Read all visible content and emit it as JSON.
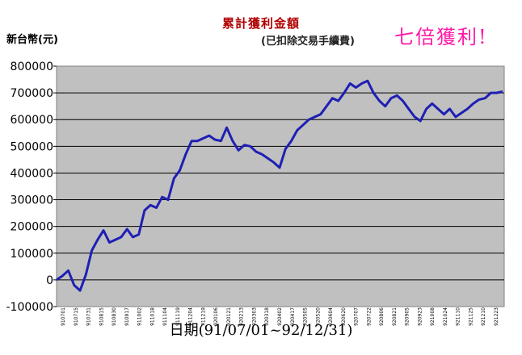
{
  "chart_data": {
    "type": "line",
    "title": "累計獲利金額",
    "subtitle": "(已扣除交易手續費)",
    "ylabel": "新台幣(元)",
    "xlabel": "日期(91/07/01~92/12/31)",
    "annotation": "七倍獲利!",
    "ylim": [
      -100000,
      800000
    ],
    "yticks": [
      -100000,
      0,
      100000,
      200000,
      300000,
      400000,
      500000,
      600000,
      700000,
      800000
    ],
    "ytick_labels": [
      "-100000",
      "0",
      "100000",
      "200000",
      "300000",
      "400000",
      "500000",
      "600000",
      "700000",
      "800000"
    ],
    "xtick_labels": [
      "910701",
      "910715",
      "910731",
      "910815",
      "910830",
      "910917",
      "911002",
      "911018",
      "911104",
      "911119",
      "911204",
      "911219",
      "920106",
      "920121",
      "920213",
      "920303",
      "920318",
      "920402",
      "920417",
      "920505",
      "920520",
      "920604",
      "920620",
      "920707",
      "920722",
      "920806",
      "920821",
      "920905",
      "920923",
      "921008",
      "921024",
      "921110",
      "921125",
      "921210",
      "921223"
    ],
    "grid": true,
    "legend": "none",
    "series": [
      {
        "color": "#1f1fb4",
        "values": [
          0,
          15000,
          35000,
          -20000,
          -40000,
          20000,
          110000,
          150000,
          185000,
          140000,
          150000,
          160000,
          190000,
          160000,
          170000,
          260000,
          280000,
          270000,
          310000,
          300000,
          380000,
          410000,
          470000,
          520000,
          520000,
          530000,
          540000,
          525000,
          520000,
          570000,
          520000,
          485000,
          505000,
          500000,
          480000,
          470000,
          455000,
          440000,
          420000,
          490000,
          520000,
          560000,
          580000,
          600000,
          610000,
          620000,
          650000,
          680000,
          670000,
          700000,
          735000,
          720000,
          735000,
          745000,
          700000,
          670000,
          650000,
          680000,
          690000,
          670000,
          640000,
          610000,
          595000,
          640000,
          660000,
          640000,
          620000,
          640000,
          610000,
          625000,
          640000,
          660000,
          675000,
          680000,
          700000,
          700000,
          705000
        ]
      }
    ]
  },
  "colors": {
    "plot_bg": "#c0c0c0",
    "line": "#1f1fb4",
    "title": "#b00000",
    "annotation": "#ff1aa8"
  }
}
